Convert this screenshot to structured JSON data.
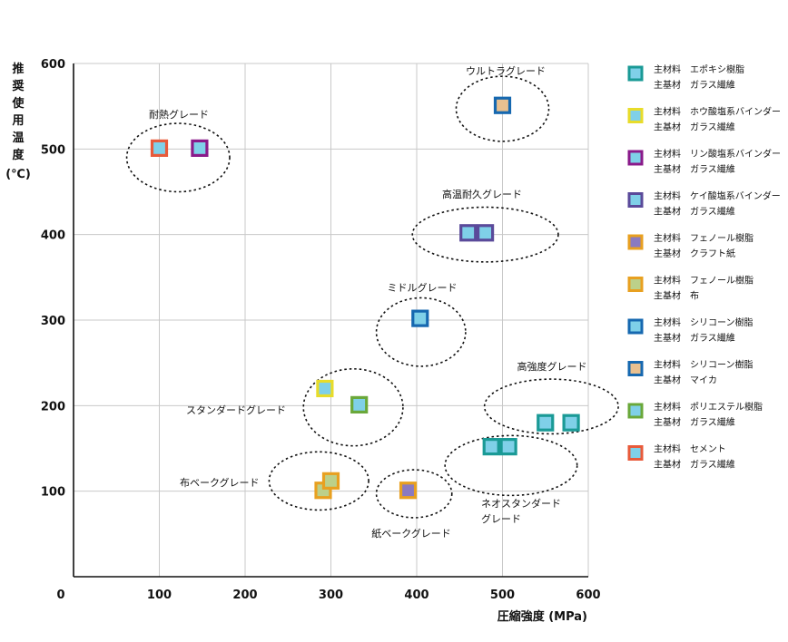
{
  "chart_data": {
    "type": "scatter",
    "xlabel": "圧縮強度 (MPa)",
    "ylabel": "推奨使用温度 (℃)",
    "xlim": [
      0,
      600
    ],
    "ylim": [
      0,
      600
    ],
    "x_ticks": [
      "0",
      "100",
      "200",
      "300",
      "400",
      "500",
      "600"
    ],
    "y_ticks": [
      "100",
      "200",
      "300",
      "400",
      "500",
      "600"
    ],
    "grid": true,
    "legend_position": "right",
    "series": [
      {
        "name": "主材料　エポキシ樹脂 / 主基材　ガラス繊維",
        "outer": "#1a9a96",
        "inner": "#7fd0e8",
        "points": [
          [
            487,
            152
          ],
          [
            507,
            152
          ],
          [
            550,
            180
          ],
          [
            580,
            180
          ]
        ]
      },
      {
        "name": "主材料　ホウ酸塩系バインダー / 主基材　ガラス繊維",
        "outer": "#e8dc2a",
        "inner": "#7fd0e8",
        "points": [
          [
            293,
            220
          ]
        ]
      },
      {
        "name": "主材料　リン酸塩系バインダー / 主基材　ガラス繊維",
        "outer": "#8a1a8a",
        "inner": "#7fd0e8",
        "points": [
          [
            147,
            501
          ]
        ]
      },
      {
        "name": "主材料　ケイ酸塩系バインダー / 主基材　ガラス繊維",
        "outer": "#5a4a9a",
        "inner": "#7fd0e8",
        "points": [
          [
            460,
            402
          ],
          [
            480,
            402
          ]
        ]
      },
      {
        "name": "主材料　フェノール樹脂 / 主基材　クラフト紙",
        "outer": "#e8a020",
        "inner": "#8a7ac0",
        "points": [
          [
            390,
            101
          ]
        ]
      },
      {
        "name": "主材料　フェノール樹脂 / 主基材　布",
        "outer": "#e8a020",
        "inner": "#bcd08a",
        "points": [
          [
            291,
            101
          ],
          [
            300,
            112
          ]
        ]
      },
      {
        "name": "主材料　シリコーン樹脂 / 主基材　ガラス繊維",
        "outer": "#1668b0",
        "inner": "#7fd0e8",
        "points": [
          [
            404,
            302
          ]
        ]
      },
      {
        "name": "主材料　シリコーン樹脂 / 主基材　マイカ",
        "outer": "#1668b0",
        "inner": "#e8c090",
        "points": [
          [
            500,
            551
          ]
        ]
      },
      {
        "name": "主材料　ポリエステル樹脂 / 主基材　ガラス繊維",
        "outer": "#6aa83a",
        "inner": "#7fd0e8",
        "points": [
          [
            333,
            201
          ]
        ]
      },
      {
        "name": "主材料　セメント / 主基材　ガラス繊維",
        "outer": "#e85a3a",
        "inner": "#7fd0e8",
        "points": [
          [
            100,
            501
          ]
        ]
      }
    ],
    "legend": [
      {
        "material": "主材料　エポキシ樹脂",
        "base": "主基材　ガラス繊維"
      },
      {
        "material": "主材料　ホウ酸塩系バインダー",
        "base": "主基材　ガラス繊維"
      },
      {
        "material": "主材料　リン酸塩系バインダー",
        "base": "主基材　ガラス繊維"
      },
      {
        "material": "主材料　ケイ酸塩系バインダー",
        "base": "主基材　ガラス繊維"
      },
      {
        "material": "主材料　フェノール樹脂",
        "base": "主基材　クラフト紙"
      },
      {
        "material": "主材料　フェノール樹脂",
        "base": "主基材　布"
      },
      {
        "material": "主材料　シリコーン樹脂",
        "base": "主基材　ガラス繊維"
      },
      {
        "material": "主材料　シリコーン樹脂",
        "base": "主基材　マイカ"
      },
      {
        "material": "主材料　ポリエステル樹脂",
        "base": "主基材　ガラス繊維"
      },
      {
        "material": "主材料　セメント",
        "base": "主基材　ガラス繊維"
      }
    ],
    "annotations": [
      {
        "label": "耐熱グレード",
        "cx": 122,
        "cy": 490,
        "rx": 60,
        "ry": 40
      },
      {
        "label": "ウルトラグレード",
        "cx": 500,
        "cy": 547,
        "rx": 54,
        "ry": 38
      },
      {
        "label": "高温耐久グレード",
        "cx": 480,
        "cy": 400,
        "rx": 85,
        "ry": 32
      },
      {
        "label": "ミドルグレード",
        "cx": 405,
        "cy": 286,
        "rx": 52,
        "ry": 40
      },
      {
        "label": "スタンダードグレード",
        "cx": 326,
        "cy": 198,
        "rx": 58,
        "ry": 45
      },
      {
        "label": "高強度グレード",
        "cx": 557,
        "cy": 199,
        "rx": 78,
        "ry": 32
      },
      {
        "label": "布ベークグレード",
        "cx": 286,
        "cy": 112,
        "rx": 58,
        "ry": 34
      },
      {
        "label": "紙ベークグレード",
        "cx": 397,
        "cy": 97,
        "rx": 44,
        "ry": 28
      },
      {
        "label": "ネオスタンダード グレード",
        "cx": 510,
        "cy": 130,
        "rx": 77,
        "ry": 35
      }
    ]
  }
}
